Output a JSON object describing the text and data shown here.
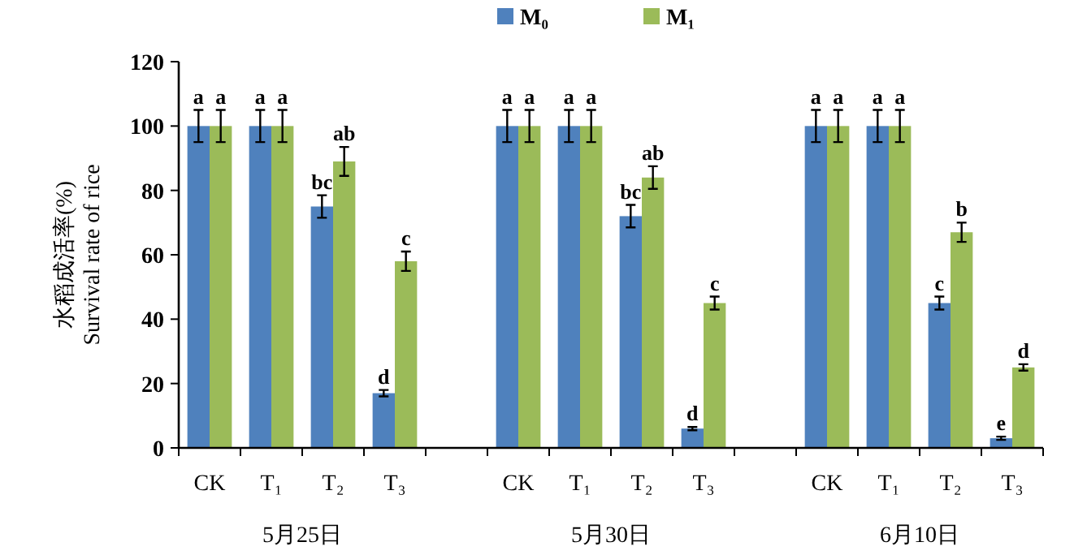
{
  "chart_data": {
    "type": "bar",
    "ylabel": "水稻成活率(%)\nSurvival rate of rice",
    "categories": [
      "CK",
      "T₁",
      "T₂",
      "T₃",
      null,
      "CK",
      "T₁",
      "T₂",
      "T₃",
      null,
      "CK",
      "T₁",
      "T₂",
      "T₃"
    ],
    "series": [
      {
        "name": "M₀",
        "color": "#4f81bd",
        "values": [
          100,
          100,
          75,
          17,
          null,
          100,
          100,
          72,
          6,
          null,
          100,
          100,
          45,
          3
        ],
        "errors": [
          5,
          5,
          3.5,
          1,
          null,
          5,
          5,
          3.5,
          0.5,
          null,
          5,
          5,
          2,
          0.5
        ],
        "value_labels": [
          "a",
          "a",
          "bc",
          "d",
          null,
          "a",
          "a",
          "bc",
          "d",
          null,
          "a",
          "a",
          "c",
          "e"
        ]
      },
      {
        "name": "M₁",
        "color": "#9bbb59",
        "values": [
          100,
          100,
          89,
          58,
          null,
          100,
          100,
          84,
          45,
          null,
          100,
          100,
          67,
          25
        ],
        "errors": [
          5,
          5,
          4.5,
          3,
          null,
          5,
          5,
          3.5,
          2,
          null,
          5,
          5,
          3,
          1
        ],
        "value_labels": [
          "a",
          "a",
          "ab",
          "c",
          null,
          "a",
          "a",
          "ab",
          "c",
          null,
          "a",
          "a",
          "b",
          "d"
        ]
      }
    ],
    "annotations": [
      "5月25日",
      "5月30日",
      "6月10日"
    ],
    "ylim": [
      0,
      120
    ],
    "yticks": [
      0,
      20,
      40,
      60,
      80,
      100,
      120
    ],
    "grid": false,
    "legend": "top"
  }
}
